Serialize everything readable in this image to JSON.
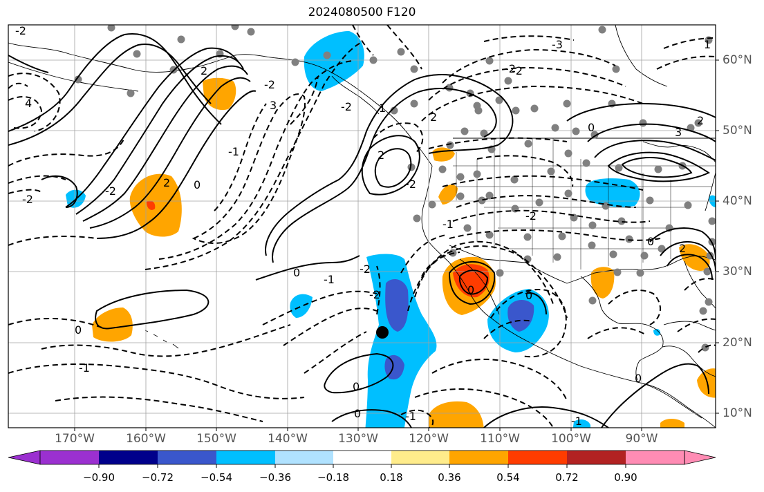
{
  "title": "2024080500 F120",
  "longitude_labels": [
    "170°W",
    "160°W",
    "150°W",
    "140°W",
    "130°W",
    "120°W",
    "110°W",
    "100°W",
    "90°W"
  ],
  "latitude_labels": [
    "60°N",
    "50°N",
    "40°N",
    "30°N",
    "20°N",
    "10°N"
  ],
  "colorbar": {
    "tick_labels": [
      "−0.90",
      "−0.72",
      "−0.54",
      "−0.36",
      "−0.18",
      "0.18",
      "0.36",
      "0.54",
      "0.72",
      "0.90"
    ],
    "colors": [
      "#9b30d0",
      "#00008b",
      "#3a57cc",
      "#00bfff",
      "#b0e2ff",
      "#ffffff",
      "#ffec8b",
      "#ffa500",
      "#ff3c00",
      "#b22222",
      "#ff8cb4"
    ]
  },
  "contour_labels": [
    "-2",
    "-2",
    "-2",
    "-1",
    "0",
    "2",
    "3",
    "4",
    "-2",
    "-1",
    "0",
    "2",
    "2",
    "0",
    "-2",
    "-3",
    "-2",
    "-2",
    "-2",
    "-1",
    "0",
    "-1",
    "-2",
    "0",
    "1",
    "2",
    "3",
    "2",
    "0",
    "-2",
    "0",
    "-1",
    "0",
    "1",
    "2",
    "0",
    "-1",
    "-2",
    "0"
  ]
}
